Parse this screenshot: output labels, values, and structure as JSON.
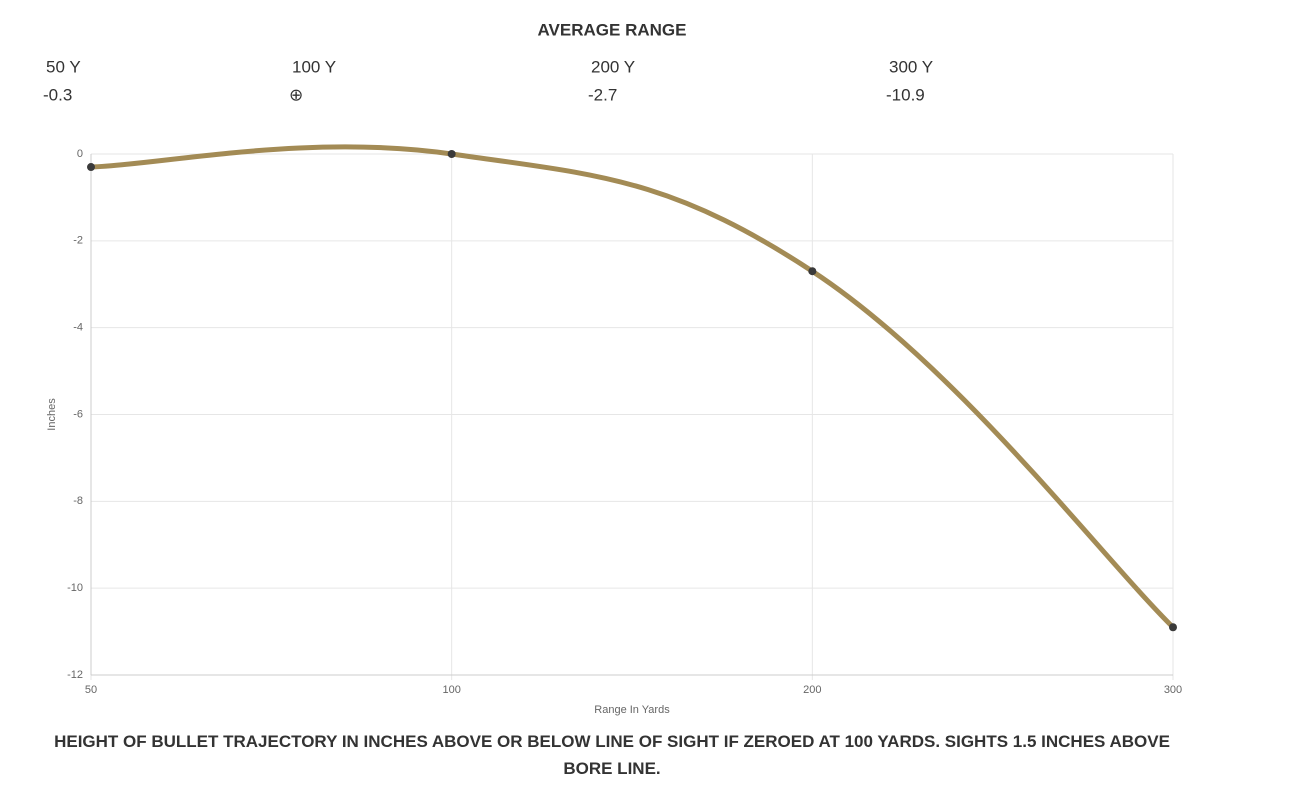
{
  "header": {
    "title": "AVERAGE RANGE",
    "columns": [
      {
        "label": "50 Y",
        "value": "-0.3"
      },
      {
        "label": "100 Y",
        "value": "⊕"
      },
      {
        "label": "200 Y",
        "value": "-2.7"
      },
      {
        "label": "300 Y",
        "value": "-10.9"
      }
    ]
  },
  "chart_data": {
    "type": "line",
    "x_label": "Range In Yards",
    "y_label": "Inches",
    "categories": [
      "50",
      "100",
      "200",
      "300"
    ],
    "series": [
      {
        "color": "#a38b55",
        "values": [
          -0.3,
          0,
          -2.7,
          -10.9
        ]
      }
    ],
    "ylim": [
      -12,
      0
    ],
    "yticks": [
      0,
      -2,
      -4,
      -6,
      -8,
      -10,
      -12
    ],
    "grid": true
  },
  "caption": "HEIGHT OF BULLET TRAJECTORY IN INCHES ABOVE OR BELOW LINE OF SIGHT IF ZEROED AT 100 YARDS. SIGHTS 1.5 INCHES ABOVE BORE LINE."
}
